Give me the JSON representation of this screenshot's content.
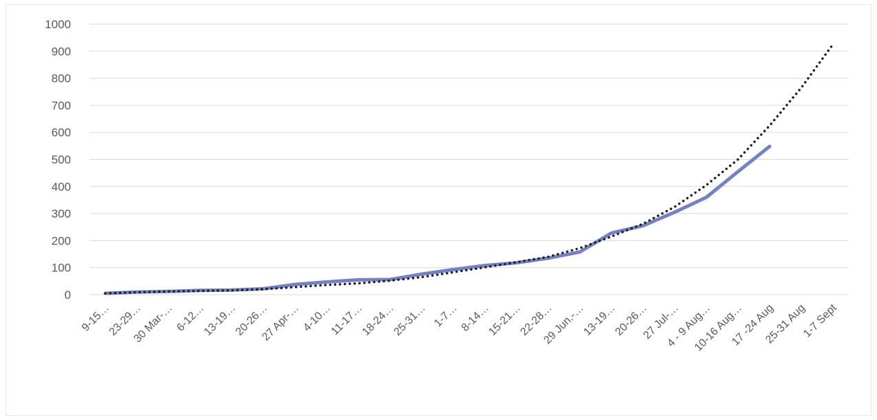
{
  "chart_data": {
    "type": "line",
    "title": "",
    "xlabel": "",
    "ylabel": "",
    "ylim": [
      0,
      1000
    ],
    "yticks": [
      0,
      100,
      200,
      300,
      400,
      500,
      600,
      700,
      800,
      900,
      1000
    ],
    "grid": true,
    "legend": "none",
    "categories": [
      "9-15…",
      "23-29…",
      "30 Mar-…",
      "6-12…",
      "13-19…",
      "20-26…",
      "27 Apr-…",
      "4-10…",
      "11-17…",
      "18-24…",
      "25-31…",
      "1-7…",
      "8-14…",
      "15-21…",
      "22-28…",
      "29 Jun.-…",
      "13-19…",
      "20-26…",
      "27 Jul-…",
      "4 - 9 Aug…",
      "10-16 Aug…",
      "17 -24 Aug",
      "25-31 Aug",
      "1-7 Sept"
    ],
    "series": [
      {
        "style": "solid",
        "color": "#7282c4",
        "values": [
          5,
          10,
          12,
          16,
          17,
          22,
          38,
          47,
          55,
          56,
          76,
          93,
          108,
          118,
          135,
          158,
          228,
          255,
          305,
          360,
          455,
          548,
          null,
          null
        ]
      },
      {
        "style": "dotted",
        "color": "#1f1f1f",
        "values": [
          5,
          9,
          12,
          14,
          16,
          20,
          28,
          36,
          42,
          52,
          65,
          83,
          101,
          120,
          140,
          172,
          215,
          262,
          325,
          405,
          500,
          625,
          765,
          925
        ]
      }
    ]
  }
}
